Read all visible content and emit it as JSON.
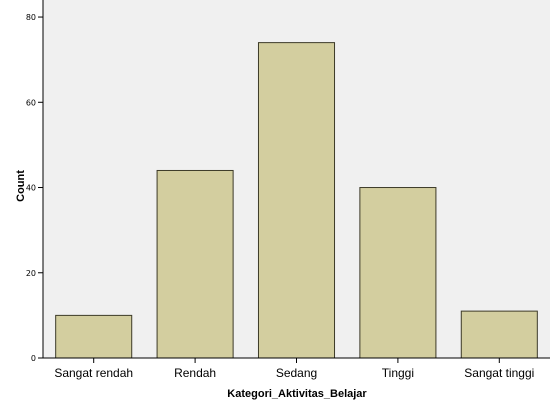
{
  "chart_data": {
    "type": "bar",
    "categories": [
      "Sangat rendah",
      "Rendah",
      "Sedang",
      "Tinggi",
      "Sangat tinggi"
    ],
    "values": [
      10,
      44,
      74,
      40,
      11
    ],
    "xlabel": "Kategori_Aktivitas_Belajar",
    "ylabel": "Count",
    "ylim": [
      0,
      84
    ],
    "yticks": [
      0,
      20,
      40,
      60,
      80
    ],
    "grid": false,
    "colors": {
      "plot_background": "#f0f0f0",
      "bar_fill": "#d3ce9f",
      "bar_stroke": "#3c3a28"
    }
  }
}
